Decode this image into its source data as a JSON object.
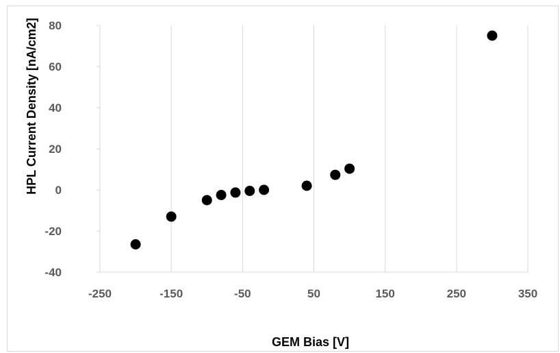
{
  "chart_data": {
    "type": "scatter",
    "title": "",
    "xlabel": "GEM Bias [V]",
    "ylabel": "HPL Current Density [nA/cm2]",
    "xlim": [
      -250,
      350
    ],
    "ylim": [
      -40,
      80
    ],
    "xticks": [
      -250,
      -150,
      -50,
      50,
      150,
      250,
      350
    ],
    "yticks": [
      -40,
      -20,
      0,
      20,
      40,
      60,
      80
    ],
    "grid": "vertical",
    "legend": "none",
    "marker_color": "#000000",
    "grid_color": "#d9d9d9",
    "series": [
      {
        "x": [
          -200,
          -150,
          -100,
          -80,
          -60,
          -40,
          -20,
          40,
          80,
          100,
          300
        ],
        "y": [
          -26.5,
          -13,
          -5,
          -2.5,
          -1.3,
          -0.5,
          0,
          2,
          7.3,
          10.3,
          75
        ]
      }
    ]
  }
}
